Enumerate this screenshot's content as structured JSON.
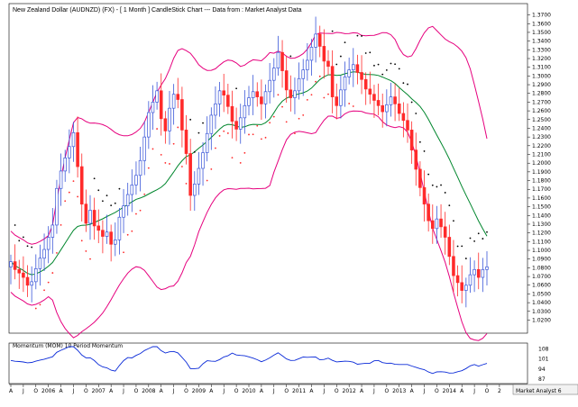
{
  "title": "New Zealand Dollar (AUDNZD) (FX) -  [ 1 Month ] CandleStick Chart --- Data from : Market Analyst Data",
  "momentum_label": "Momentum (MOM) 10 Period Momentum",
  "watermark": "Market Analyst 6",
  "colors": {
    "background": "#ffffff",
    "up_candle": "#3a56d8",
    "down_candle": "#ff2a2a",
    "bollinger": "#e6007e",
    "moving_average": "#00862d",
    "parabolic_sar": "#000000",
    "momentum": "#0a2ad8"
  },
  "chart_data": [
    {
      "type": "candlestick",
      "title": "New Zealand Dollar (AUDNZD) (FX) -  [ 1 Month ] CandleStick Chart --- Data from : Market Analyst Data",
      "ylim": [
        1.005,
        1.383
      ],
      "y_ticks": [
        "1.0200",
        "1.0300",
        "1.0400",
        "1.0500",
        "1.0600",
        "1.0700",
        "1.0800",
        "1.0900",
        "1.1000",
        "1.1100",
        "1.1200",
        "1.1300",
        "1.1400",
        "1.1500",
        "1.1600",
        "1.1700",
        "1.1800",
        "1.1900",
        "1.2000",
        "1.2100",
        "1.2200",
        "1.2300",
        "1.2400",
        "1.2500",
        "1.2600",
        "1.2700",
        "1.2800",
        "1.2900",
        "1.3000",
        "1.3100",
        "1.3200",
        "1.3300",
        "1.3400",
        "1.3500",
        "1.3600",
        "1.3700"
      ],
      "x_ticks": [
        "A",
        "J",
        "O",
        "2006",
        "A",
        "J",
        "O",
        "2007",
        "A",
        "J",
        "O",
        "2008",
        "A",
        "J",
        "O",
        "2009",
        "A",
        "J",
        "O",
        "2010",
        "A",
        "J",
        "O",
        "2011",
        "A",
        "J",
        "O",
        "2012",
        "A",
        "J",
        "O",
        "2013",
        "A",
        "J",
        "O",
        "2014",
        "A",
        "J",
        "O",
        "2"
      ],
      "x_range": [
        "2005-04",
        "2014-07"
      ],
      "indicators": [
        "Bollinger Bands",
        "Moving Average",
        "Parabolic SAR"
      ],
      "close": [
        1.087,
        1.078,
        1.074,
        1.069,
        1.06,
        1.064,
        1.079,
        1.091,
        1.101,
        1.115,
        1.129,
        1.171,
        1.191,
        1.206,
        1.219,
        1.235,
        1.196,
        1.153,
        1.131,
        1.146,
        1.128,
        1.123,
        1.116,
        1.121,
        1.107,
        1.112,
        1.138,
        1.151,
        1.164,
        1.175,
        1.186,
        1.203,
        1.23,
        1.258,
        1.27,
        1.283,
        1.251,
        1.237,
        1.263,
        1.279,
        1.273,
        1.238,
        1.211,
        1.163,
        1.176,
        1.194,
        1.212,
        1.234,
        1.255,
        1.268,
        1.283,
        1.278,
        1.265,
        1.248,
        1.239,
        1.252,
        1.266,
        1.275,
        1.282,
        1.276,
        1.268,
        1.282,
        1.295,
        1.309,
        1.327,
        1.306,
        1.284,
        1.275,
        1.283,
        1.297,
        1.307,
        1.318,
        1.333,
        1.348,
        1.334,
        1.317,
        1.311,
        1.276,
        1.266,
        1.284,
        1.299,
        1.307,
        1.313,
        1.304,
        1.296,
        1.285,
        1.279,
        1.272,
        1.266,
        1.259,
        1.267,
        1.276,
        1.268,
        1.257,
        1.249,
        1.238,
        1.215,
        1.193,
        1.172,
        1.153,
        1.134,
        1.125,
        1.136,
        1.127,
        1.115,
        1.093,
        1.071,
        1.063,
        1.054,
        1.06,
        1.072,
        1.078,
        1.069,
        1.078,
        1.081
      ]
    },
    {
      "type": "line",
      "title": "Momentum (MOM) 10 Period Momentum",
      "y_ticks": [
        "108",
        "101",
        "94",
        "87"
      ],
      "ylim": [
        84,
        112
      ]
    }
  ]
}
